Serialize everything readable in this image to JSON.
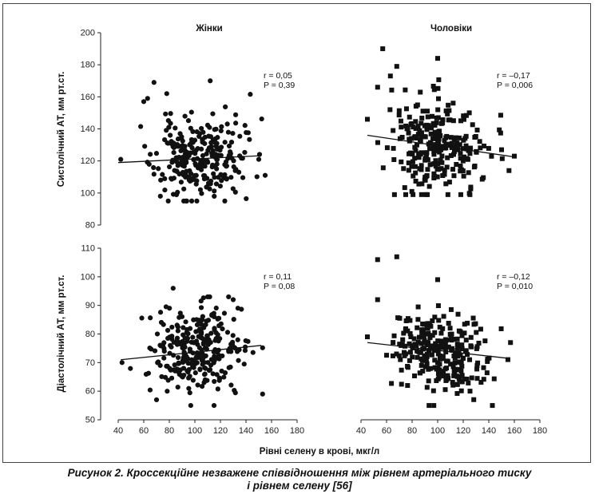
{
  "figure": {
    "caption_line_1": "Рисунок 2. Кроссекційне незважене співвідношення між рівнем артеріального тиску",
    "caption_line_2": "і рівнем селену [56]",
    "col_titles": [
      "Жінки",
      "Чоловіки"
    ],
    "ylabels": [
      "Систолічний АТ, мм рт.ст.",
      "Діастолічний АТ, мм рт.ст."
    ],
    "xlabel": "Рівні селену в крові, мкг/л"
  },
  "chart_data": [
    {
      "type": "scatter",
      "panel": "top-left",
      "title": "Жінки",
      "ylabel": "Систолічний АТ, мм рт.ст.",
      "xlim": [
        40,
        180
      ],
      "ylim": [
        80,
        200
      ],
      "xticks": [
        40,
        60,
        80,
        100,
        120,
        140,
        160,
        180
      ],
      "yticks": [
        80,
        100,
        120,
        140,
        160,
        180,
        200
      ],
      "show_x_ticks": false,
      "marker": "circle",
      "annotation": [
        "r = 0,05",
        "P = 0,39"
      ],
      "trend": {
        "x": [
          40,
          150
        ],
        "y": [
          119,
          123.2
        ]
      },
      "points": {
        "seed": 11,
        "n": 260,
        "x_mean": 103,
        "x_sd": 17,
        "x_min": 42,
        "x_max": 155,
        "y_mean": 121,
        "y_sd": 13,
        "y_min": 95,
        "y_max": 171,
        "slope": 0.04
      },
      "outliers": [
        [
          68,
          169
        ],
        [
          112,
          170
        ],
        [
          60,
          157
        ],
        [
          63,
          159
        ],
        [
          78,
          162
        ],
        [
          42,
          121
        ],
        [
          150,
          121
        ],
        [
          155,
          111
        ],
        [
          73,
          98
        ]
      ]
    },
    {
      "type": "scatter",
      "panel": "top-right",
      "title": "Чоловіки",
      "xlim": [
        40,
        180
      ],
      "ylim": [
        80,
        200
      ],
      "xticks": [
        40,
        60,
        80,
        100,
        120,
        140,
        160,
        180
      ],
      "yticks": [
        80,
        100,
        120,
        140,
        160,
        180,
        200
      ],
      "show_x_ticks": false,
      "show_y_ticks": false,
      "marker": "square",
      "annotation": [
        "r = –0,17",
        "P = 0,006"
      ],
      "trend": {
        "x": [
          45,
          160
        ],
        "y": [
          136,
          122.5
        ]
      },
      "points": {
        "seed": 29,
        "n": 270,
        "x_mean": 100,
        "x_sd": 19,
        "x_min": 45,
        "x_max": 160,
        "y_mean": 130,
        "y_sd": 14,
        "y_min": 99,
        "y_max": 184,
        "slope": -0.12
      },
      "outliers": [
        [
          57,
          190
        ],
        [
          100,
          184
        ],
        [
          68,
          179
        ],
        [
          53,
          166
        ],
        [
          63,
          173
        ],
        [
          45,
          146
        ],
        [
          160,
          123
        ],
        [
          150,
          127
        ],
        [
          75,
          99
        ]
      ]
    },
    {
      "type": "scatter",
      "panel": "bottom-left",
      "ylabel": "Діастолічний АТ, мм рт.ст.",
      "xlim": [
        40,
        180
      ],
      "ylim": [
        50,
        110
      ],
      "xticks": [
        40,
        60,
        80,
        100,
        120,
        140,
        160,
        180
      ],
      "yticks": [
        50,
        60,
        70,
        80,
        90,
        100,
        110
      ],
      "show_x_ticks": true,
      "marker": "circle",
      "annotation": [
        "r = 0,11",
        "P = 0,08"
      ],
      "trend": {
        "x": [
          42,
          152
        ],
        "y": [
          71,
          76
        ]
      },
      "points": {
        "seed": 47,
        "n": 280,
        "x_mean": 103,
        "x_sd": 18,
        "x_min": 42,
        "x_max": 153,
        "y_mean": 74,
        "y_sd": 7.5,
        "y_min": 55,
        "y_max": 93,
        "slope": 0.045
      },
      "outliers": [
        [
          83,
          96
        ],
        [
          110,
          93
        ],
        [
          130,
          92
        ],
        [
          43,
          70
        ],
        [
          153,
          59
        ],
        [
          70,
          57
        ],
        [
          115,
          55
        ]
      ]
    },
    {
      "type": "scatter",
      "panel": "bottom-right",
      "xlim": [
        40,
        180
      ],
      "ylim": [
        50,
        110
      ],
      "xticks": [
        40,
        60,
        80,
        100,
        120,
        140,
        160,
        180
      ],
      "yticks": [
        50,
        60,
        70,
        80,
        90,
        100,
        110
      ],
      "show_x_ticks": true,
      "show_y_ticks": false,
      "marker": "square",
      "annotation": [
        "r = –0,12",
        "P = 0,010"
      ],
      "trend": {
        "x": [
          45,
          155
        ],
        "y": [
          77,
          71.5
        ]
      },
      "points": {
        "seed": 83,
        "n": 270,
        "x_mean": 100,
        "x_sd": 19,
        "x_min": 45,
        "x_max": 157,
        "y_mean": 74,
        "y_sd": 7,
        "y_min": 55,
        "y_max": 99,
        "slope": -0.05
      },
      "outliers": [
        [
          53,
          106
        ],
        [
          68,
          107
        ],
        [
          100,
          99
        ],
        [
          53,
          92
        ],
        [
          157,
          77
        ],
        [
          45,
          79
        ],
        [
          97,
          55
        ]
      ]
    }
  ]
}
